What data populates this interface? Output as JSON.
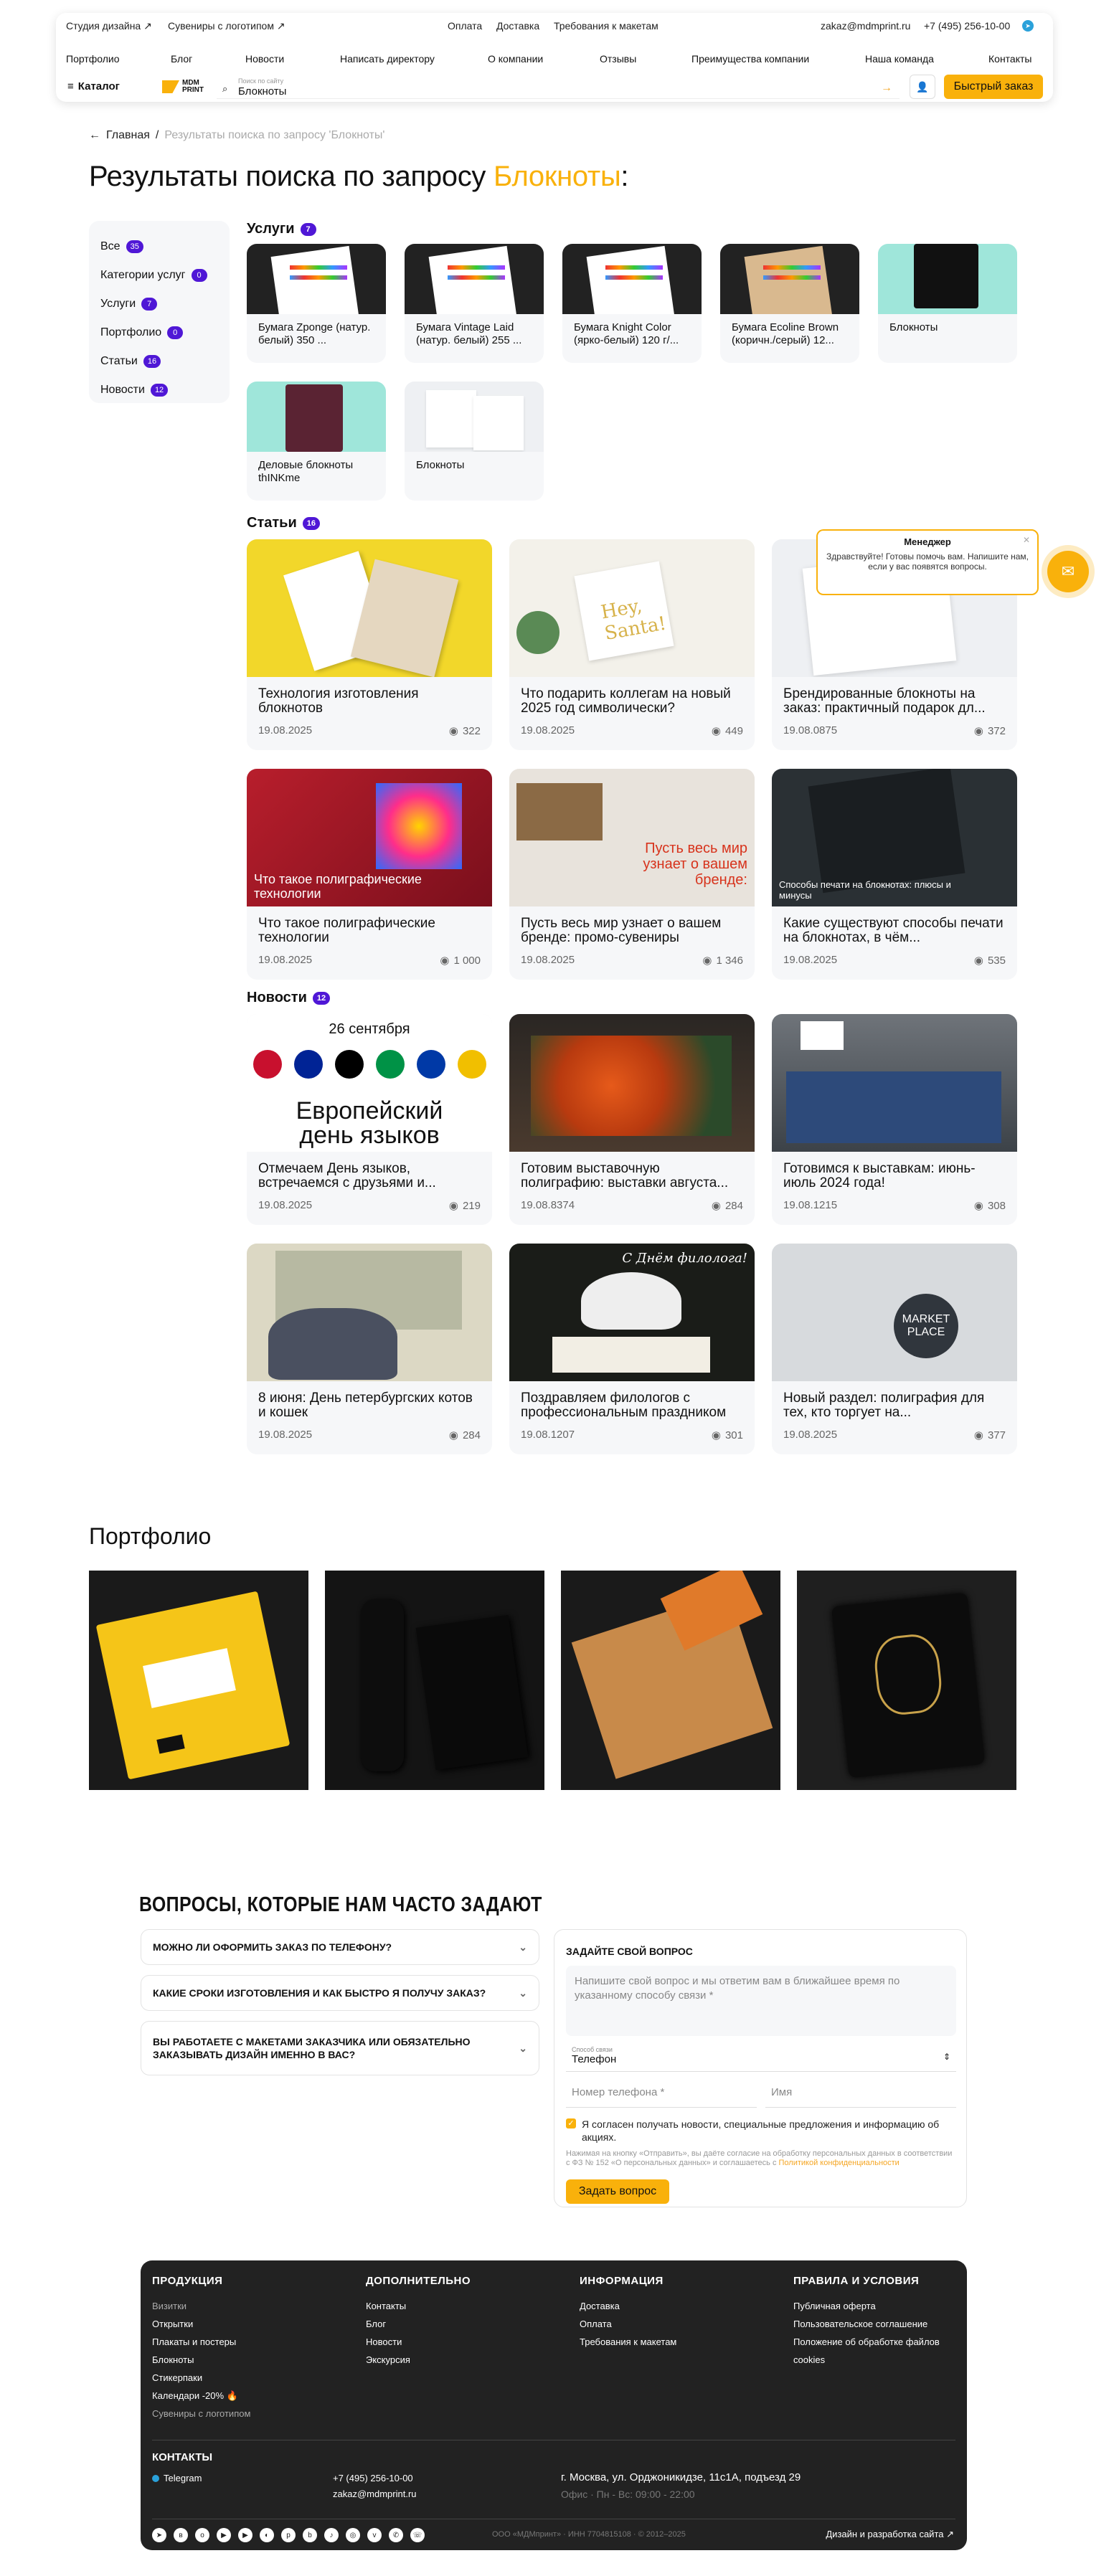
{
  "header": {
    "top_left": [
      "Студия дизайна ↗",
      "Сувениры с логотипом ↗"
    ],
    "top_center": [
      "Оплата",
      "Доставка",
      "Требования к макетам"
    ],
    "email": "zakaz@mdmprint.ru",
    "phone": "+7 (495) 256-10-00",
    "nav": [
      "Портфолио",
      "Блог",
      "Новости",
      "Написать директору",
      "О компании",
      "Отзывы",
      "Преимущества компании",
      "Наша команда",
      "Контакты"
    ],
    "catalog_label": "Каталог",
    "logo_text_1": "MDM",
    "logo_text_2": "PRINT",
    "search_label": "Поиск по сайту",
    "search_value": "Блокноты",
    "quick_order": "Быстрый заказ"
  },
  "breadcrumbs": {
    "home": "Главная",
    "current": "Результаты поиска по запросу 'Блокноты'"
  },
  "title": {
    "prefix": "Результаты поиска по запросу ",
    "query": "Блокноты",
    "suffix": ":"
  },
  "sidebar": [
    {
      "label": "Все",
      "count": "35"
    },
    {
      "label": "Категории услуг",
      "count": "0"
    },
    {
      "label": "Услуги",
      "count": "7"
    },
    {
      "label": "Портфолио",
      "count": "0"
    },
    {
      "label": "Статьи",
      "count": "16"
    },
    {
      "label": "Новости",
      "count": "12"
    }
  ],
  "services": {
    "title": "Услуги",
    "count": "7",
    "items": [
      "Бумага Zponge (натур. белый) 350 ...",
      "Бумага Vintage Laid (натур. белый) 255 ...",
      "Бумага Knight Color (ярко-белый) 120 г/...",
      "Бумага Ecoline Brown (коричн./серый) 12...",
      "Блокноты",
      "Деловые блокноты thINKme",
      "Блокноты"
    ]
  },
  "articles": {
    "title": "Статьи",
    "count": "16",
    "items": [
      {
        "title": "Технология изготовления блокнотов",
        "date": "19.08.2025",
        "views": "322",
        "overlay": ""
      },
      {
        "title": "Что подарить коллегам на новый 2025 год символически?",
        "date": "19.08.2025",
        "views": "449",
        "overlay": ""
      },
      {
        "title": "Брендированные блокноты на заказ: практичный подарок дл...",
        "date": "19.08.0875",
        "views": "372",
        "overlay": ""
      },
      {
        "title": "Что такое полиграфические технологии",
        "date": "19.08.2025",
        "views": "1 000",
        "overlay": "Что такое полиграфические технологии"
      },
      {
        "title": "Пусть весь мир узнает о вашем бренде: промо-сувениры",
        "date": "19.08.2025",
        "views": "1 346",
        "overlay": "Пусть весь мир узнает о вашем бренде:"
      },
      {
        "title": "Какие существуют способы печати на блокнотах, в чём...",
        "date": "19.08.2025",
        "views": "535",
        "overlay": "Способы печати на блокнотах: плюсы и минусы"
      }
    ]
  },
  "news": {
    "title": "Новости",
    "count": "12",
    "items": [
      {
        "title": "Отмечаем День языков, встречаемся с друзьями и...",
        "date": "19.08.2025",
        "views": "219"
      },
      {
        "title": "Готовим выставочную полиграфию: выставки августа...",
        "date": "19.08.8374",
        "views": "284"
      },
      {
        "title": "Готовимся к выставкам: июнь-июль 2024 года!",
        "date": "19.08.1215",
        "views": "308"
      },
      {
        "title": "8 июня: День петербургских котов и кошек",
        "date": "19.08.2025",
        "views": "284"
      },
      {
        "title": "Поздравляем филологов с профессиональным праздником",
        "date": "19.08.1207",
        "views": "301"
      },
      {
        "title": "Новый раздел: полиграфия для тех, кто торгует на...",
        "date": "19.08.2025",
        "views": "377"
      }
    ],
    "img1_date": "26 сентября",
    "img1_line1": "Европейский",
    "img1_line2": "день языков",
    "img5_text": "С Днём филолога!",
    "img6_text": "MARKET PLACE"
  },
  "chat": {
    "name": "Менеджер",
    "message": "Здравствуйте! Готовы помочь вам. Напишите нам, если у вас появятся вопросы."
  },
  "portfolio": {
    "title": "Портфолио"
  },
  "faq": {
    "title": "ВОПРОСЫ, КОТОРЫЕ НАМ ЧАСТО ЗАДАЮТ",
    "items": [
      "МОЖНО ЛИ ОФОРМИТЬ ЗАКАЗ ПО ТЕЛЕФОНУ?",
      "КАКИЕ СРОКИ ИЗГОТОВЛЕНИЯ И КАК БЫСТРО Я ПОЛУЧУ ЗАКАЗ?",
      "ВЫ РАБОТАЕТЕ С МАКЕТАМИ ЗАКАЗЧИКА ИЛИ ОБЯЗАТЕЛЬНО ЗАКАЗЫВАТЬ ДИЗАЙН ИМЕННО В ВАС?"
    ],
    "form": {
      "heading": "ЗАДАЙТЕ СВОЙ ВОПРОС",
      "question_placeholder": "Напишите свой вопрос и мы ответим вам в ближайшее время по указанному способу связи *",
      "contact_label": "Способ связи",
      "contact_value": "Телефон",
      "phone_placeholder": "Номер телефона *",
      "name_placeholder": "Имя",
      "consent": "Я согласен получать новости, специальные предложения и информацию об акциях.",
      "legal": "Нажимая на кнопку «Отправить», вы даёте согласие на обработку персональных данных в соответствии с ФЗ № 152 «О персональных данных» и соглашаетесь с ",
      "legal_link": "Политикой конфиденциальности",
      "submit": "Задать вопрос"
    }
  },
  "footer": {
    "columns": [
      {
        "title": "ПРОДУКЦИЯ",
        "items": [
          "Визитки",
          "Открытки",
          "Плакаты и постеры",
          "Блокноты",
          "Стикерпаки",
          "Календари -20% 🔥",
          "Сувениры с логотипом"
        ]
      },
      {
        "title": "ДОПОЛНИТЕЛЬНО",
        "items": [
          "Контакты",
          "Блог",
          "Новости",
          "Экскурсия"
        ]
      },
      {
        "title": "ИНФОРМАЦИЯ",
        "items": [
          "Доставка",
          "Оплата",
          "Требования к макетам"
        ]
      },
      {
        "title": "ПРАВИЛА И УСЛОВИЯ",
        "items": [
          "Публичная оферта",
          "Пользовательское соглашение",
          "Положение об обработке файлов cookies"
        ]
      }
    ],
    "contacts_title": "КОНТАКТЫ",
    "telegram": "Telegram",
    "phone": "+7 (495) 256-10-00",
    "email": "zakaz@mdmprint.ru",
    "address": "г. Москва, ул. Орджоникидзе, 11с1А, подъезд 29",
    "hours": "Офис · Пн - Вс: 09:00 - 22:00",
    "legal": "ООО «МДМпринт» · ИНН 7704815108 · © 2012–2025",
    "design_credit": "Дизайн и разработка сайта ↗"
  },
  "colors": {
    "accent": "#f9b10b",
    "badge": "#4f17d6",
    "footer_bg": "#222222"
  }
}
